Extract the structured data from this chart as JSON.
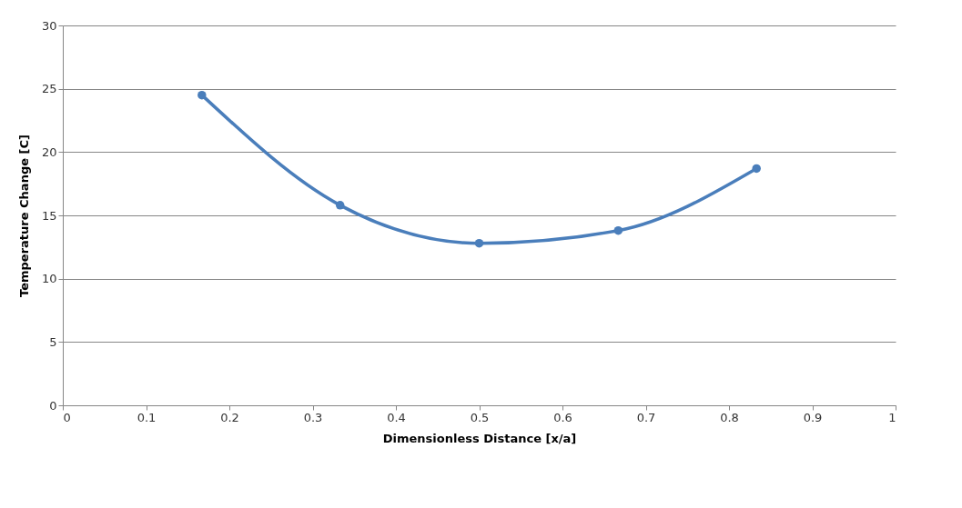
{
  "chart_data": {
    "type": "line",
    "xlabel": "Dimensionless Distance [x/a]",
    "ylabel": "Temperature Change [C]",
    "x": [
      0.167,
      0.333,
      0.5,
      0.667,
      0.833
    ],
    "series": [
      {
        "color": "#4a7ebb",
        "values": [
          24.5,
          15.8,
          12.8,
          13.8,
          18.7
        ]
      }
    ],
    "xlim": [
      0,
      1
    ],
    "xticks": [
      0,
      0.1,
      0.2,
      0.3,
      0.4,
      0.5,
      0.6,
      0.7,
      0.8,
      0.9,
      1
    ],
    "ylim": [
      0,
      30
    ],
    "yticks": [
      0,
      5,
      10,
      15,
      20,
      25,
      30
    ],
    "grid": "y",
    "marker": "circle",
    "line_style": "solid"
  }
}
